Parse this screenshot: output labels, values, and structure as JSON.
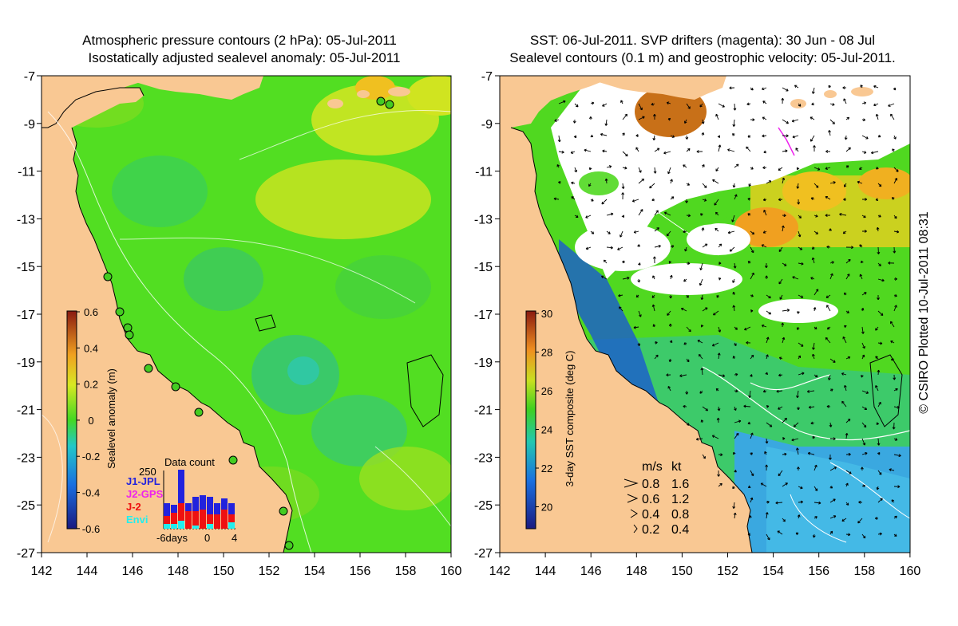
{
  "left_panel": {
    "title_line1": "Atmospheric pressure contours (2 hPa): 05-Jul-2011",
    "title_line2": "Isostatically adjusted sealevel anomaly: 05-Jul-2011",
    "colorbar": {
      "label": "Sealevel anomaly (m)",
      "ticks": [
        "0.6",
        "0.4",
        "0.2",
        "0",
        "-0.2",
        "-0.4",
        "-0.6"
      ]
    },
    "data_count": {
      "title": "Data count",
      "max_label": "250",
      "legend": [
        {
          "label": "J1-JPL",
          "color": "#2222dd"
        },
        {
          "label": "J2-GPS",
          "color": "#ee22ee"
        },
        {
          "label": "J-2",
          "color": "#ee1111"
        },
        {
          "label": "Envi",
          "color": "#22eeee"
        }
      ],
      "x_labels": [
        "-6days",
        "0",
        "4"
      ]
    }
  },
  "right_panel": {
    "title_line1": "SST: 06-Jul-2011. SVP drifters (magenta): 30 Jun - 08 Jul",
    "title_line2": "Sealevel contours (0.1 m) and geostrophic velocity: 05-Jul-2011.",
    "colorbar": {
      "label": "3-day SST composite (deg C)",
      "ticks": [
        "30",
        "28",
        "26",
        "24",
        "22",
        "20"
      ]
    },
    "velocity_legend": {
      "header_ms": "m/s",
      "header_kt": "kt",
      "rows": [
        {
          "ms": "0.8",
          "kt": "1.6"
        },
        {
          "ms": "0.6",
          "kt": "1.2"
        },
        {
          "ms": "0.4",
          "kt": "0.8"
        },
        {
          "ms": "0.2",
          "kt": "0.4"
        }
      ]
    }
  },
  "axes": {
    "y_labels": [
      "-7",
      "-9",
      "-11",
      "-13",
      "-15",
      "-17",
      "-19",
      "-21",
      "-23",
      "-25",
      "-27"
    ],
    "x_labels": [
      "142",
      "144",
      "146",
      "148",
      "150",
      "152",
      "154",
      "156",
      "158",
      "160"
    ]
  },
  "credit": "© CSIRO Plotted 10-Jul-2011 08:31",
  "colors": {
    "land": "#f9c893",
    "ocean_green": "#55e022",
    "cloud": "#ffffff"
  }
}
